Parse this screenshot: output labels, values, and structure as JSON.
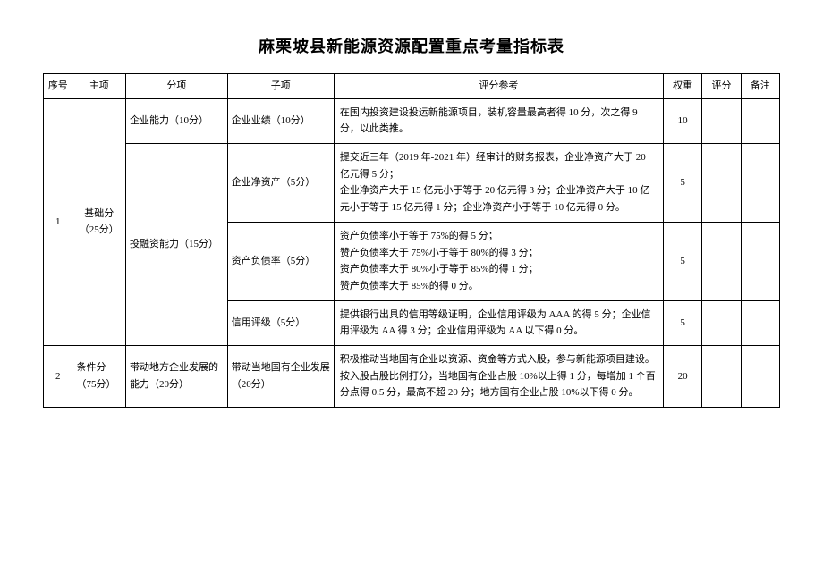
{
  "title": "麻栗坡县新能源资源配置重点考量指标表",
  "headers": {
    "seq": "序号",
    "main": "主项",
    "sub": "分项",
    "item": "子项",
    "ref": "评分参考",
    "weight": "权重",
    "score": "评分",
    "note": "备注"
  },
  "rows": [
    {
      "seq": "1",
      "main": "基础分（25分）",
      "sub": "企业能力（10分）",
      "item": "企业业绩（10分）",
      "ref": "在国内投资建设投运新能源项目，装机容量最高者得 10 分，次之得 9 分，以此类推。",
      "weight": "10"
    },
    {
      "sub": "投融资能力（15分）",
      "item": "企业净资产（5分）",
      "ref": "提交近三年（2019 年-2021 年）经审计的财务报表，企业净资产大于 20 亿元得 5 分；\n企业净资产大于 15 亿元小于等于 20 亿元得 3 分；企业净资产大于 10 亿元小于等于 15 亿元得 1 分；企业净资产小于等于 10 亿元得 0 分。",
      "weight": "5"
    },
    {
      "item": "资产负债率（5分）",
      "ref": "资产负债率小于等于 75%的得 5 分；\n赞产负债率大于 75%小于等于 80%的得 3 分；\n资产负债率大于 80%小于等于 85%的得 1 分；\n赞产负债率大于 85%的得 0 分。",
      "weight": "5"
    },
    {
      "item": "信用评级（5分）",
      "ref": "提供银行出具的信用等级证明，企业信用评级为 AAA 的得 5 分；企业信用评级为 AA 得 3 分；企业信用评级为 AA 以下得 0 分。",
      "weight": "5"
    },
    {
      "seq": "2",
      "main": "条件分（75分）",
      "sub": "带动地方企业发展的能力（20分）",
      "item": "带动当地国有企业发展（20分）",
      "ref": "积极推动当地国有企业以资源、资金等方式入股，参与新能源项目建设。按入股占股比例打分，当地国有企业占股 10%以上得 1 分，每增加 1 个百分点得 0.5 分，最高不超 20 分；地方国有企业占股 10%以下得 0 分。",
      "weight": "20"
    }
  ]
}
